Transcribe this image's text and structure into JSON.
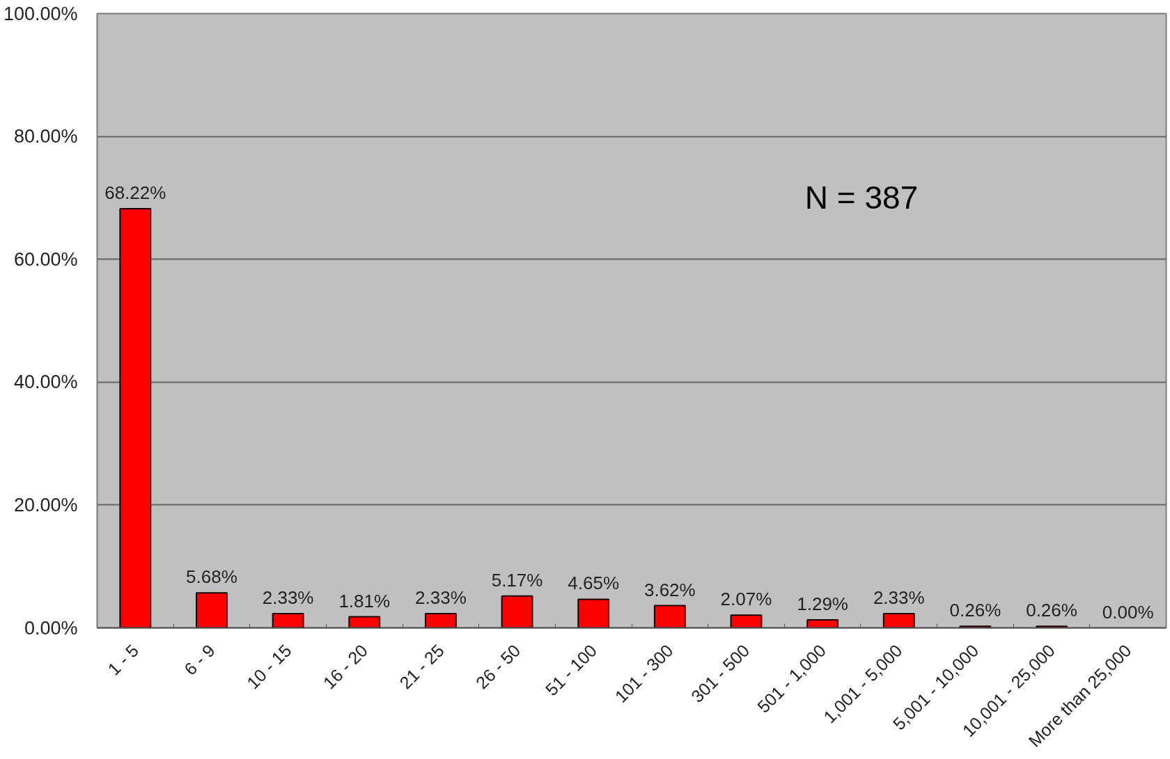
{
  "chart_data": {
    "type": "bar",
    "categories": [
      "1 - 5",
      "6 - 9",
      "10 - 15",
      "16 - 20",
      "21 - 25",
      "26 - 50",
      "51 - 100",
      "101 - 300",
      "301 - 500",
      "501 - 1,000",
      "1,001 - 5,000",
      "5,001 - 10,000",
      "10,001 - 25,000",
      "More than 25,000"
    ],
    "values": [
      68.22,
      5.68,
      2.33,
      1.81,
      2.33,
      5.17,
      4.65,
      3.62,
      2.07,
      1.29,
      2.33,
      0.26,
      0.26,
      0.0
    ],
    "value_labels": [
      "68.22%",
      "5.68%",
      "2.33%",
      "1.81%",
      "2.33%",
      "5.17%",
      "4.65%",
      "3.62%",
      "2.07%",
      "1.29%",
      "2.33%",
      "0.26%",
      "0.26%",
      "0.00%"
    ],
    "color": "#ff0000",
    "ylim": [
      0,
      100
    ],
    "yticks": [
      {
        "value": 0,
        "label": "0.00%"
      },
      {
        "value": 20,
        "label": "20.00%"
      },
      {
        "value": 40,
        "label": "40.00%"
      },
      {
        "value": 60,
        "label": "60.00%"
      },
      {
        "value": 80,
        "label": "80.00%"
      },
      {
        "value": 100,
        "label": "100.00%"
      }
    ],
    "grid": "y",
    "annotations": [
      "N = 387"
    ]
  }
}
